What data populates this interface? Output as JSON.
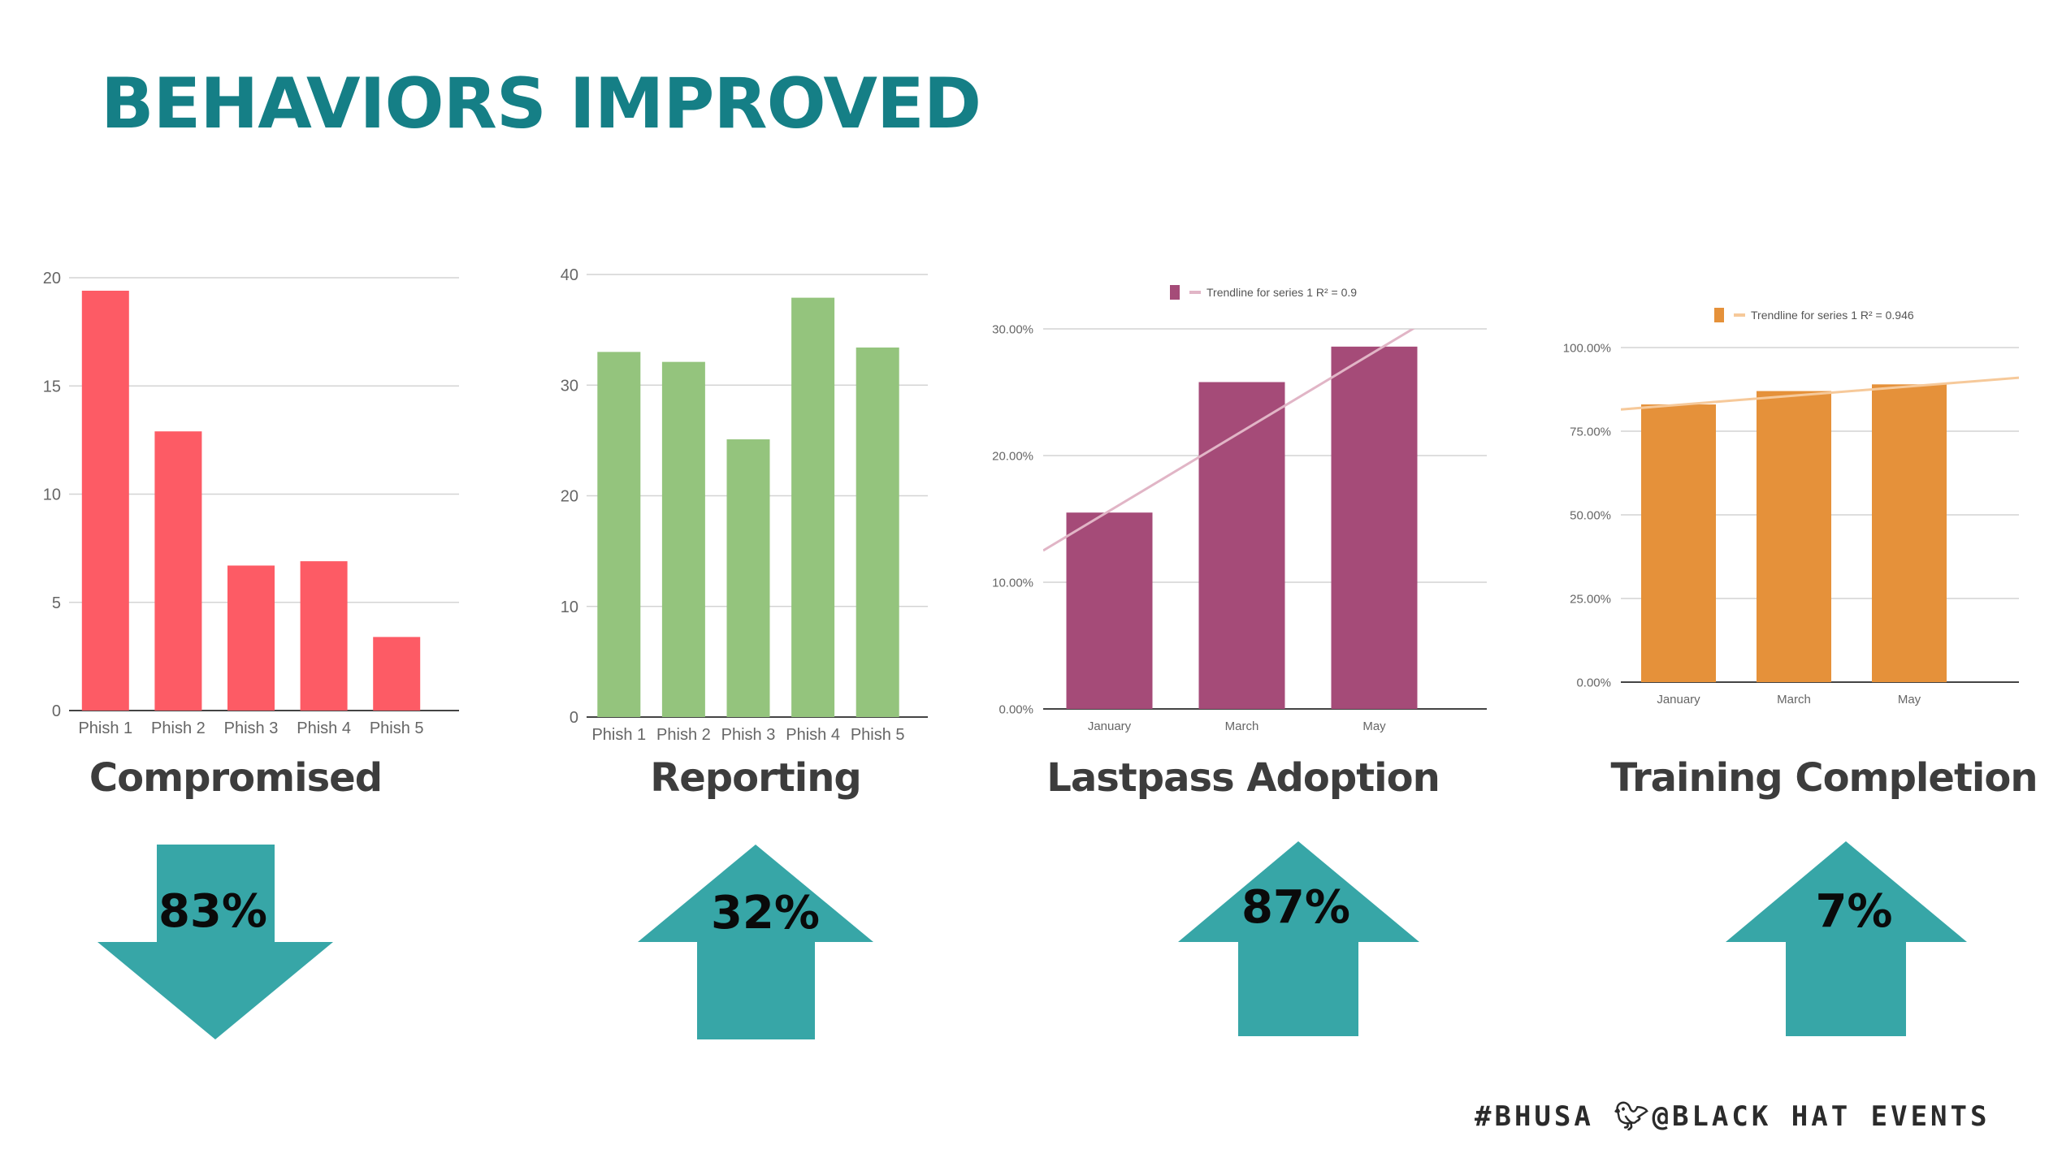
{
  "slide": {
    "title": "BEHAVIORS IMPROVED"
  },
  "chart_data": [
    {
      "type": "bar",
      "color": "#fd5b65",
      "categories": [
        "Phish 1",
        "Phish 2",
        "Phish 3",
        "Phish 4",
        "Phish 5"
      ],
      "values": [
        19.4,
        12.9,
        6.7,
        6.9,
        3.4
      ],
      "yticks": [
        "0",
        "5",
        "10",
        "15",
        "20"
      ],
      "ylim": [
        0,
        20
      ],
      "grid": true,
      "caption": "Compromised"
    },
    {
      "type": "bar",
      "color": "#94c47d",
      "categories": [
        "Phish 1",
        "Phish 2",
        "Phish 3",
        "Phish 4",
        "Phish 5"
      ],
      "values": [
        33,
        32.1,
        25.1,
        37.9,
        33.4
      ],
      "yticks": [
        "0",
        "10",
        "20",
        "30",
        "40"
      ],
      "ylim": [
        0,
        40
      ],
      "grid": true,
      "caption": "Reporting"
    },
    {
      "type": "bar",
      "color": "#a54b78",
      "trend_color": "#e1b5c6",
      "categories": [
        "January",
        "March",
        "May"
      ],
      "values": [
        0.155,
        0.258,
        0.286
      ],
      "yticks": [
        "0.00%",
        "10.00%",
        "20.00%",
        "30.00%"
      ],
      "ylim": [
        0,
        0.3
      ],
      "trendline": {
        "label": "Trendline for series 1 R² = 0.9",
        "start": 0.125,
        "end": 0.335
      },
      "grid": true,
      "legend": "top",
      "caption": "Lastpass Adoption"
    },
    {
      "type": "bar",
      "color": "#e5913a",
      "trend_color": "#f6c99a",
      "categories": [
        "January",
        "March",
        "May"
      ],
      "values": [
        0.83,
        0.87,
        0.89
      ],
      "yticks": [
        "0.00%",
        "25.00%",
        "50.00%",
        "75.00%",
        "100.00%"
      ],
      "ylim": [
        0,
        1.0
      ],
      "trendline": {
        "label": "Trendline for series 1 R² = 0.946",
        "start": 0.815,
        "end": 0.91
      },
      "grid": true,
      "legend": "top",
      "caption": "Training Completion"
    }
  ],
  "indicators": [
    {
      "value": "83%",
      "direction": "down",
      "color": "#37a6a7"
    },
    {
      "value": "32%",
      "direction": "up",
      "color": "#37a6a7"
    },
    {
      "value": "87%",
      "direction": "up",
      "color": "#37a6a7"
    },
    {
      "value": "7%",
      "direction": "up",
      "color": "#37a6a7"
    }
  ],
  "footer": {
    "hashtag": "#BHUSA",
    "bird_icon": "twitter-bird-icon",
    "handle": "@BLACK HAT EVENTS"
  }
}
